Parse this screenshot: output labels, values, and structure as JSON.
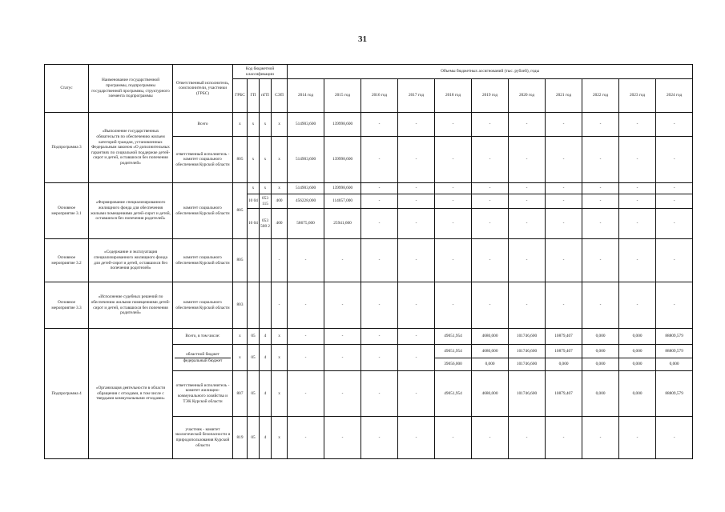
{
  "page_number": "31",
  "header": {
    "status": "Статус",
    "name": "Наименование государственной программы, подпрограммы государственной программы, структурного элемента подпрограммы",
    "responsible": "Ответственный исполнитель, соисполнители, участники (ГРБС)",
    "code_group": "Код бюджетной классификации",
    "grbs": "ГРБС",
    "gp": "ГП",
    "pgp": "пГП",
    "sep": "СЭП",
    "volumes": "Объемы бюджетных ассигнований (тыс. рублей), годы",
    "years": [
      "2014 год",
      "2015 год",
      "2016 год",
      "2017 год",
      "2018 год",
      "2019 год",
      "2020 год",
      "2021 год",
      "2022 год",
      "2023 год",
      "2024 год"
    ]
  },
  "subprogram3": {
    "status": "Подпрограмма 3",
    "name": "«Выполнение государственных обязательств по обеспечению жильем категорий граждан, установленных Федеральным законом «О дополнительных гарантиях по социальной поддержке детей-сирот и детей, оставшихся без попечения родителей»",
    "rows": [
      {
        "responsible": "Всего",
        "grbs": "x",
        "gp": "x",
        "pgp": "x",
        "sep": "x",
        "values": [
          "514903,600",
          "139998,600",
          "-",
          "-",
          "-",
          "-",
          "-",
          "-",
          "-",
          "-",
          "-"
        ]
      },
      {
        "responsible": "ответственный исполнитель - комитет социального обеспечения Курской области",
        "grbs": "805",
        "gp": "x",
        "pgp": "x",
        "sep": "x",
        "values": [
          "514903,600",
          "139998,600",
          "-",
          "-",
          "-",
          "-",
          "-",
          "-",
          "-",
          "-",
          "-"
        ]
      }
    ]
  },
  "measure31": {
    "status": "Основное мероприятие 3.1",
    "name": "«Формирование специализированного жилищного фонда для обеспечения жилыми помещениями детей-сирот и детей, оставшихся без попечения родителей»",
    "responsible": "комитет социального обеспечения Курской области",
    "grbs": "805",
    "rows": [
      {
        "gp": "x",
        "pgp": "x",
        "sep": "x",
        "values": [
          "514903,600",
          "139998,600",
          "-",
          "-",
          "-",
          "-",
          "-",
          "-",
          "-",
          "-",
          "-"
        ]
      },
      {
        "gp": "10 04",
        "pgp": "053 115",
        "sep": "400",
        "values": [
          "456228,000",
          "114057,000",
          "-",
          "-",
          "-",
          "-",
          "-",
          "-",
          "-",
          "-",
          "-"
        ]
      },
      {
        "gp": "10 04",
        "pgp": "053 508 2",
        "sep": "400",
        "values": [
          "58675,600",
          "25941,600",
          "-",
          "-",
          "-",
          "-",
          "-",
          "-",
          "-",
          "-",
          "-"
        ]
      }
    ]
  },
  "measure32": {
    "status": "Основное мероприятие 3.2",
    "name": "«Содержание и эксплуатация специализированного жилищного фонда для детей-сирот и детей, оставшихся без попечения родителей»",
    "responsible": "комитет социального обеспечения Курской области",
    "grbs": "805",
    "gp": "",
    "pgp": "",
    "sep": "-",
    "values": [
      "-",
      "-",
      "-",
      "-",
      "-",
      "-",
      "-",
      "-",
      "-",
      "-",
      "-"
    ]
  },
  "measure33": {
    "status": "Основное мероприятие 3.3",
    "name": "«Исполнение судебных решений по обеспечению жилыми помещениями детей-сирот и детей, оставшихся без попечения родителей»",
    "responsible": "комитет социального обеспечения Курской области",
    "grbs": "803",
    "gp": "",
    "pgp": "",
    "sep": "-",
    "values": [
      "-",
      "-",
      "-",
      "-",
      "-",
      "-",
      "-",
      "-",
      "-",
      "-",
      "-"
    ]
  },
  "subprogram4": {
    "status": "Подпрограмма 4",
    "name": "«Организация деятельности в области обращения с отходами, в том числе с твердыми коммунальными отходами»",
    "total": {
      "responsible": "Всего, в том числе:",
      "grbs": "x",
      "gp": "05",
      "pgp": "4",
      "sep": "x",
      "values": [
        "-",
        "-",
        "-",
        "-",
        "49051,954",
        "4680,000",
        "101746,600",
        "10879,407",
        "0,000",
        "0,000",
        "88809,579"
      ]
    },
    "budgets": {
      "responsible_a": "областной бюджет",
      "responsible_b": "федеральный бюджет",
      "grbs": "x",
      "gp": "05",
      "pgp": "4",
      "sep": "x",
      "values_early": [
        "-",
        "-",
        "-",
        "-"
      ],
      "values_a": [
        "49051,954",
        "4680,000",
        "101746,600",
        "10879,407",
        "0,000",
        "0,000",
        "88809,579"
      ],
      "values_b": [
        "39056,000",
        "0,000",
        "101746,600",
        "0,000",
        "0,000",
        "0,000",
        "0,000"
      ]
    },
    "executor": {
      "responsible": "ответственный исполнитель - комитет жилищно-коммунального хозяйства и ТЭК Курской области",
      "grbs": "807",
      "gp": "05",
      "pgp": "4",
      "sep": "x",
      "values": [
        "-",
        "-",
        "-",
        "-",
        "49051,954",
        "4680,000",
        "101746,600",
        "10879,407",
        "0,000",
        "0,000",
        "88809,579"
      ]
    },
    "participant": {
      "responsible": "участник - комитет экологической безопасности и природопользования Курской области",
      "grbs": "819",
      "gp": "05",
      "pgp": "4",
      "sep": "x",
      "values": [
        "-",
        "-",
        "-",
        "-",
        "-",
        "-",
        "-",
        "-",
        "-",
        "-",
        "-"
      ]
    }
  }
}
